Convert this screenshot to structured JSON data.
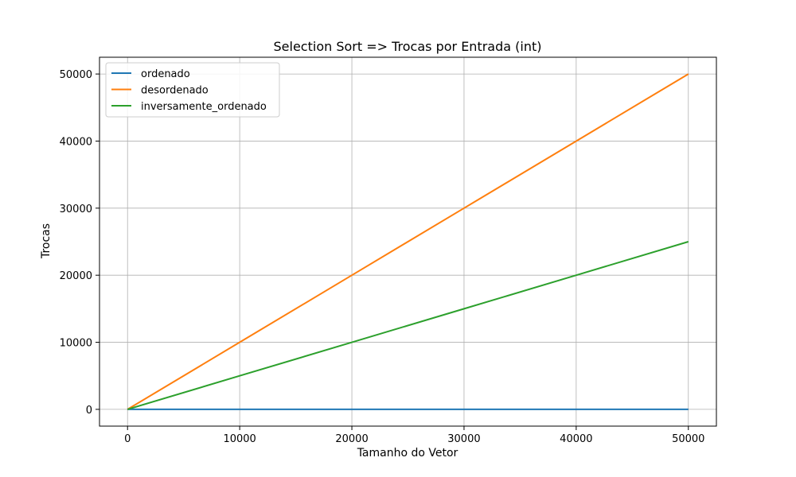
{
  "chart_data": {
    "type": "line",
    "title": "Selection Sort => Trocas por Entrada (int)",
    "xlabel": "Tamanho do Vetor",
    "ylabel": "Trocas",
    "xlim": [
      -2500,
      52500
    ],
    "ylim": [
      -2500,
      52500
    ],
    "xticks": [
      0,
      10000,
      20000,
      30000,
      40000,
      50000
    ],
    "yticks": [
      0,
      10000,
      20000,
      30000,
      40000,
      50000
    ],
    "grid": true,
    "legend_position": "upper-left",
    "x": [
      0,
      10000,
      20000,
      30000,
      40000,
      50000
    ],
    "series": [
      {
        "name": "ordenado",
        "color": "#1f77b4",
        "values": [
          0,
          0,
          0,
          0,
          0,
          0
        ]
      },
      {
        "name": "desordenado",
        "color": "#ff7f0e",
        "values": [
          0,
          10000,
          20000,
          30000,
          40000,
          50000
        ]
      },
      {
        "name": "inversamente_ordenado",
        "color": "#2ca02c",
        "values": [
          0,
          5000,
          10000,
          15000,
          20000,
          25000
        ]
      }
    ]
  }
}
